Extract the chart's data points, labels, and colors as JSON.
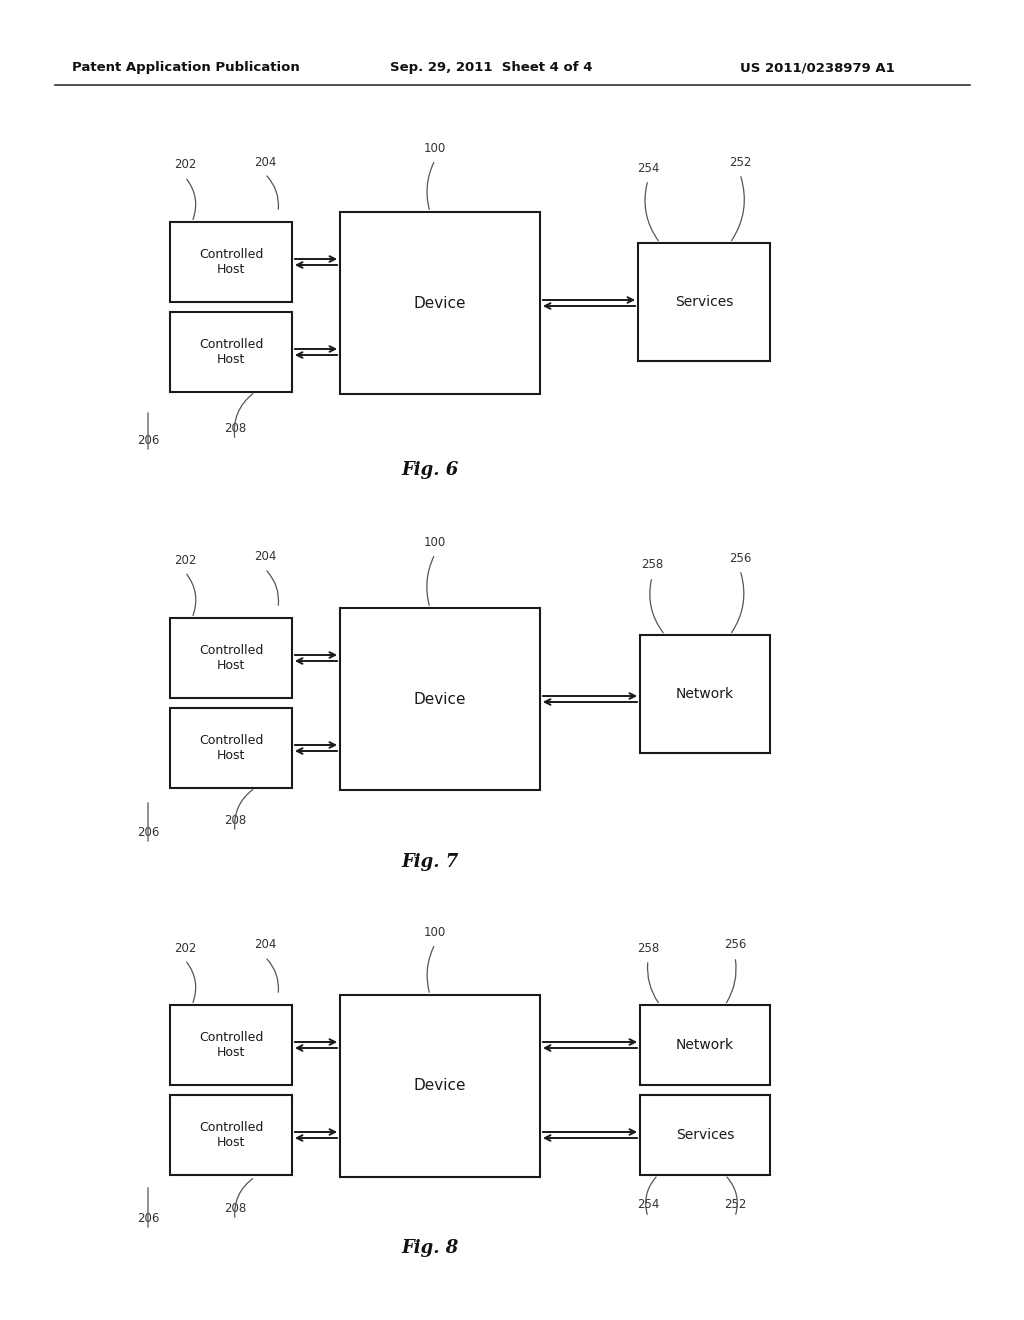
{
  "bg_color": "#ffffff",
  "header_text": "Patent Application Publication",
  "header_date": "Sep. 29, 2011  Sheet 4 of 4",
  "header_patent": "US 2011/0238979 A1",
  "fig6_label": "Fig. 6",
  "fig7_label": "Fig. 7",
  "fig8_label": "Fig. 8",
  "text_color": "#1a1a1a",
  "box_edge_color": "#1a1a1a",
  "box_face_color": "#ffffff",
  "line_color": "#555555",
  "label_color": "#333333",
  "header_line_color": "#333333"
}
